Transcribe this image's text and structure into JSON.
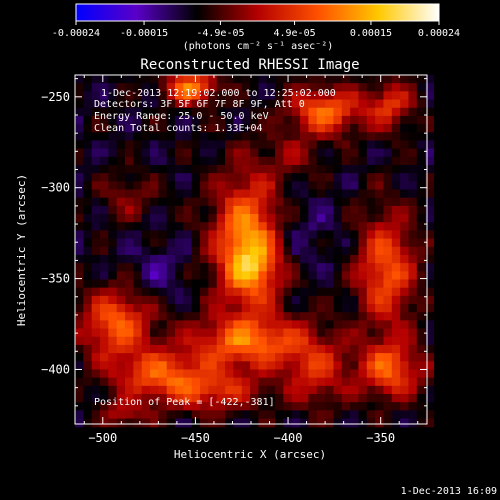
{
  "colorbar": {
    "tick_labels": [
      "-0.00024",
      "-0.00015",
      "-4.9e-05",
      "4.9e-05",
      "0.00015",
      "0.00024"
    ],
    "tick_values": [
      -0.00024,
      -0.00015,
      -4.9e-05,
      4.9e-05,
      0.00015,
      0.00024
    ],
    "range": [
      -0.00024,
      0.00024
    ],
    "units_label": "(photons cm⁻² s⁻¹ asec⁻²)",
    "colormap_stops": [
      "#0000ff",
      "#5a00c8",
      "#000000",
      "#b40000",
      "#ff5000",
      "#ffc800",
      "#ffffff"
    ]
  },
  "chart_data": {
    "type": "heatmap",
    "title": "Reconstructed RHESSI Image",
    "xlabel": "Heliocentric X (arcsec)",
    "ylabel": "Heliocentric Y (arcsec)",
    "xlim": [
      -515,
      -325
    ],
    "ylim": [
      -430,
      -238
    ],
    "x_ticks": [
      -500,
      -450,
      -400,
      -350
    ],
    "y_ticks": [
      -250,
      -300,
      -350,
      -400
    ],
    "x_tick_labels": [
      "−500",
      "−450",
      "−400",
      "−350"
    ],
    "y_tick_labels": [
      "−250",
      "−300",
      "−350",
      "−400"
    ],
    "annotations": [
      "1-Dec-2013 12:19:02.000 to 12:25:02.000",
      "Detectors: 3F 5F 6F 7F 8F 9F, Att 0",
      "Energy Range: 25.0 - 50.0 keV",
      "Clean     Total counts: 1.33E+04"
    ],
    "peak_label": "Position of Peak = [-422,-381]",
    "sources": [
      {
        "x": -422,
        "y": -330,
        "sx": 13,
        "sy": 25,
        "amp": 0.00022
      },
      {
        "x": -418,
        "y": -345,
        "sx": 9,
        "sy": 10,
        "amp": 8e-05
      },
      {
        "x": -452,
        "y": -245,
        "sx": 10,
        "sy": 6,
        "amp": 0.00019
      },
      {
        "x": -380,
        "y": -258,
        "sx": 14,
        "sy": 9,
        "amp": 0.00017
      },
      {
        "x": -345,
        "y": -255,
        "sx": 9,
        "sy": 9,
        "amp": 0.00012
      },
      {
        "x": -347,
        "y": -345,
        "sx": 11,
        "sy": 22,
        "amp": 0.00016
      },
      {
        "x": -345,
        "y": -400,
        "sx": 12,
        "sy": 11,
        "amp": 0.00016
      },
      {
        "x": -493,
        "y": -375,
        "sx": 13,
        "sy": 13,
        "amp": 0.00017
      },
      {
        "x": -470,
        "y": -402,
        "sx": 18,
        "sy": 9,
        "amp": 0.00014
      },
      {
        "x": -422,
        "y": -385,
        "sx": 22,
        "sy": 10,
        "amp": 0.00017
      },
      {
        "x": -442,
        "y": -412,
        "sx": 20,
        "sy": 8,
        "amp": 0.00012
      },
      {
        "x": -385,
        "y": -400,
        "sx": 12,
        "sy": 14,
        "amp": 0.00011
      },
      {
        "x": -487,
        "y": -305,
        "sx": 10,
        "sy": 9,
        "amp": 6e-05
      },
      {
        "x": -397,
        "y": -282,
        "sx": 12,
        "sy": 8,
        "amp": 5e-05
      },
      {
        "x": -395,
        "y": -325,
        "sx": 14,
        "sy": 14,
        "amp": -4e-05
      },
      {
        "x": -470,
        "y": -345,
        "sx": 11,
        "sy": 11,
        "amp": -4e-05
      },
      {
        "x": -488,
        "y": -425,
        "sx": 9,
        "sy": 6,
        "amp": 8e-05
      }
    ]
  },
  "footer": {
    "timestamp": "1-Dec-2013 16:09"
  }
}
